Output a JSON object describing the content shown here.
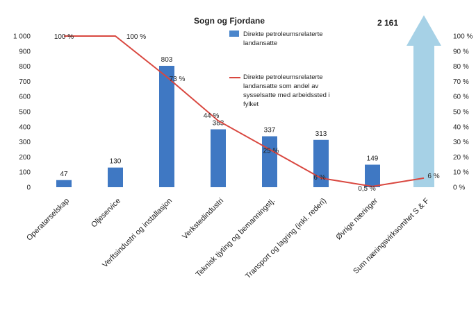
{
  "chart_data": {
    "type": "bar",
    "title": "Sogn og Fjordane",
    "categories": [
      "Operatørselskap",
      "Oljeservice",
      "Verftsindustri og installasjon",
      "Verkstedindustri",
      "Teknisk tjyting og bemanningstj.",
      "Transport og lagring (inkl. rederi)",
      "Øvrige næringer",
      "Sum næringsvirksomhet S & F"
    ],
    "series": [
      {
        "name": "Direkte petroleumsrelaterte landansatte",
        "type": "bar",
        "axis": "left",
        "values": [
          47,
          130,
          803,
          383,
          337,
          313,
          149,
          null
        ],
        "value_labels": [
          "47",
          "130",
          "803",
          "383",
          "337",
          "313",
          "149",
          ""
        ]
      },
      {
        "name": "Direkte petroleumsrelaterte landansatte som andel av sysselsatte med arbeidssted i fylket",
        "type": "line",
        "axis": "right",
        "values": [
          100,
          100,
          73,
          44,
          25,
          6,
          0.5,
          6
        ],
        "value_labels": [
          "100 %",
          "100 %",
          "73 %",
          "44 %",
          "25 %",
          "6 %",
          "0,5 %",
          "6 %"
        ]
      }
    ],
    "total": {
      "value": 2161,
      "label": "2 161"
    },
    "left_axis": {
      "ylim": [
        0,
        1000
      ],
      "ticks": [
        "0",
        "100",
        "200",
        "300",
        "400",
        "500",
        "600",
        "700",
        "800",
        "900",
        "1 000"
      ]
    },
    "right_axis": {
      "ylim": [
        0,
        100
      ],
      "ticks": [
        "0 %",
        "10 %",
        "20 %",
        "30 %",
        "40 %",
        "50 %",
        "60 %",
        "70 %",
        "80 %",
        "90 %",
        "100 %"
      ]
    },
    "colors": {
      "bar": "#3f78c3",
      "line": "#d9473f",
      "arrow": "#a6d1e6",
      "legend_bar": "#4a86cc"
    },
    "grid": false,
    "legend_placement": "top-center"
  }
}
